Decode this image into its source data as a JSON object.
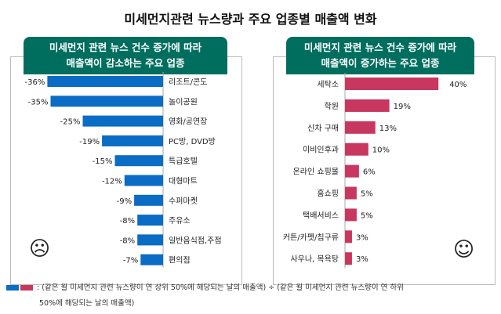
{
  "title": "미세먼지관련 뉴스량과 주요 업종별 매출액 변화",
  "colors": {
    "header": "#006e5e",
    "decrease": "#0a6cc4",
    "increase": "#c8375f"
  },
  "icons": {
    "left": "sad-face-icon",
    "right": "smiley-face-icon"
  },
  "legend": {
    "line1": ": (같은 월 미세먼지 관련 뉴스량이 연 상위 50%에 해당되는 날의 매출액) ÷ (같은 월 미세먼지 관련 뉴스량이 연 하위",
    "line2": "50%에 해당되는 날의 매출액)"
  },
  "chart_data": [
    {
      "type": "bar",
      "orientation": "horizontal",
      "title_line1": "미세먼지 관련 뉴스 건수 증가에 따라",
      "title_line2": "매출액이 감소하는 주요 업종",
      "categories": [
        "리조트/콘도",
        "놀이공원",
        "영화/공연장",
        "PC방, DVD방",
        "특급호텔",
        "대형마트",
        "수퍼마켓",
        "주유소",
        "일반음식점,주점",
        "편의점"
      ],
      "values": [
        -36,
        -35,
        -25,
        -19,
        -15,
        -12,
        -9,
        -8,
        -8,
        -7
      ],
      "labels": [
        "-36%",
        "-35%",
        "-25%",
        "-19%",
        "-15%",
        "-12%",
        "-9%",
        "-8%",
        "-8%",
        "-7%"
      ],
      "color": "#0a6cc4"
    },
    {
      "type": "bar",
      "orientation": "horizontal",
      "title_line1": "미세먼지 관련 뉴스 건수 증가에 따라",
      "title_line2": "매출액이 증가하는 주요 업종",
      "categories": [
        "세탁소",
        "학원",
        "신차 구매",
        "이비인후과",
        "온라인 쇼핑몰",
        "홈쇼핑",
        "택배서비스",
        "커튼/카펫/침구류",
        "사우나, 목욕탕"
      ],
      "values": [
        40,
        19,
        13,
        10,
        6,
        5,
        5,
        3,
        3
      ],
      "labels": [
        "40%",
        "19%",
        "13%",
        "10%",
        "6%",
        "5%",
        "5%",
        "3%",
        "3%"
      ],
      "color": "#c8375f"
    }
  ]
}
